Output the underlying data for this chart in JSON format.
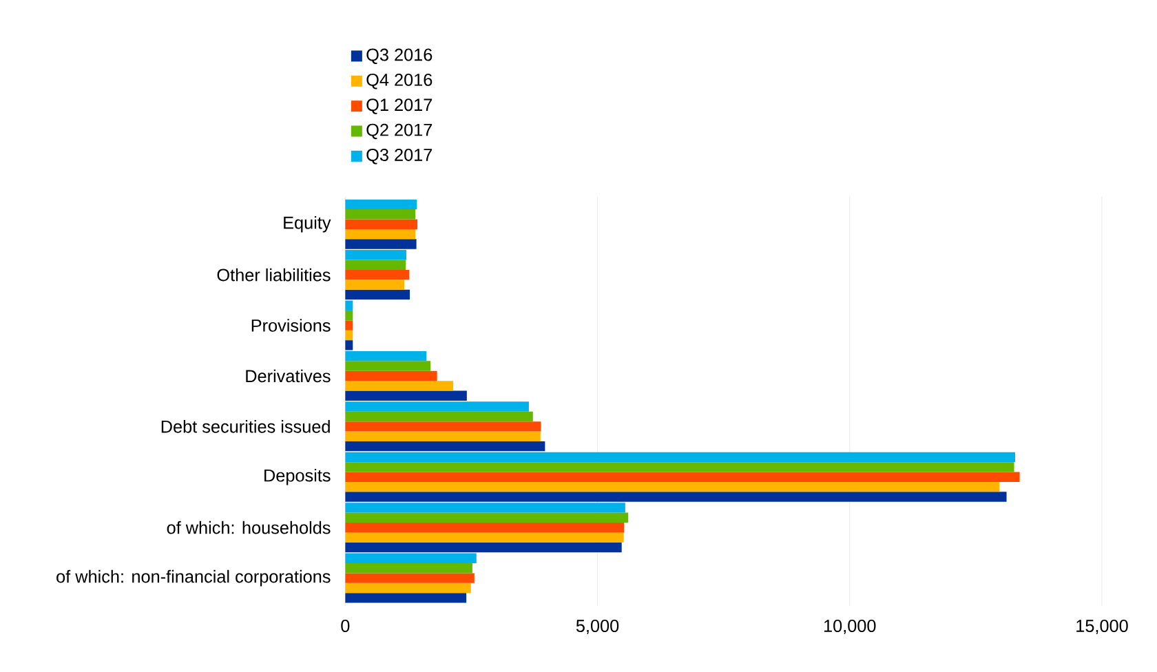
{
  "chart_data": {
    "type": "bar",
    "orientation": "horizontal",
    "categories": [
      "Equity",
      "Other liabilities",
      "Provisions",
      "Derivatives",
      "Debt securities issued",
      "Deposits",
      "of which: households",
      "of which: non-financial corporations"
    ],
    "series": [
      {
        "name": "Q3 2016",
        "color": "#003299",
        "values": [
          1410,
          1280,
          150,
          2410,
          3960,
          13110,
          5480,
          2400
        ]
      },
      {
        "name": "Q4 2016",
        "color": "#ffb400",
        "values": [
          1390,
          1170,
          150,
          2140,
          3870,
          12970,
          5520,
          2490
        ]
      },
      {
        "name": "Q1 2017",
        "color": "#ff4b00",
        "values": [
          1430,
          1270,
          150,
          1820,
          3880,
          13370,
          5530,
          2560
        ]
      },
      {
        "name": "Q2 2017",
        "color": "#65b800",
        "values": [
          1390,
          1200,
          150,
          1690,
          3720,
          13260,
          5610,
          2520
        ]
      },
      {
        "name": "Q3 2017",
        "color": "#00b1ea",
        "values": [
          1420,
          1210,
          150,
          1610,
          3640,
          13280,
          5550,
          2600
        ]
      }
    ],
    "xlim": [
      0,
      15000
    ],
    "xticks": [
      0,
      {
        "value": 5000,
        "label": "5,000"
      },
      {
        "value": 10000,
        "label": "10,000"
      },
      {
        "value": 15000,
        "label": "15,000"
      }
    ],
    "grid": "x",
    "legend": "top left"
  }
}
